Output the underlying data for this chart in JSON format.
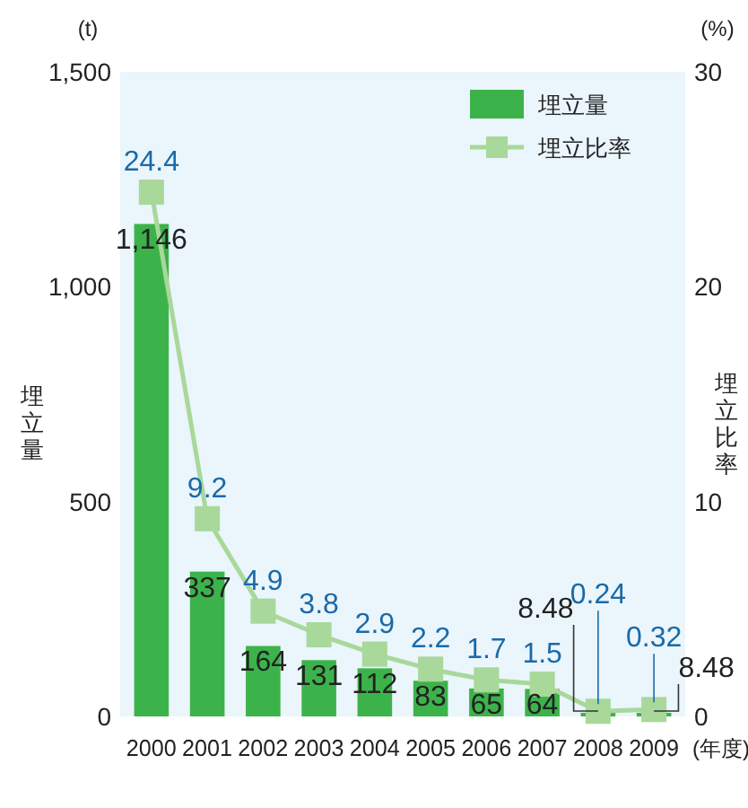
{
  "chart_data": {
    "type": "bar",
    "categories": [
      "2000",
      "2001",
      "2002",
      "2003",
      "2004",
      "2005",
      "2006",
      "2007",
      "2008",
      "2009"
    ],
    "ylabel": "埋立量",
    "y2label": "埋立比率",
    "xlabel": "(年度)",
    "annotations": [
      "(t)",
      "(%)"
    ],
    "ylim": [
      0,
      1500
    ],
    "yticks": [
      0,
      500,
      {
        "value": 1000,
        "label": "1,000"
      },
      {
        "value": 1500,
        "label": "1,500"
      }
    ],
    "y2lim": [
      0,
      30
    ],
    "y2ticks": [
      0,
      10,
      20,
      30
    ],
    "grid": false,
    "legend": "top right",
    "series": [
      {
        "name": "埋立量",
        "color": "#3cb34a",
        "values": [
          1146,
          337,
          164,
          131,
          112,
          83,
          65,
          64,
          8.48,
          8.48
        ],
        "value_labels": [
          "1,146",
          "337",
          "164",
          "131",
          "112",
          "83",
          "65",
          "64",
          "8.48",
          "8.48"
        ]
      },
      {
        "name": "埋立比率",
        "type": "line",
        "axis": "y2",
        "color": "#a8d89a",
        "marker": "square",
        "line_style": "solid",
        "values": [
          24.4,
          9.2,
          4.9,
          3.8,
          2.9,
          2.2,
          1.7,
          1.5,
          0.24,
          0.32
        ],
        "value_labels": [
          "24.4",
          "9.2",
          "4.9",
          "3.8",
          "2.9",
          "2.2",
          "1.7",
          "1.5",
          "0.24",
          "0.32"
        ]
      }
    ]
  }
}
